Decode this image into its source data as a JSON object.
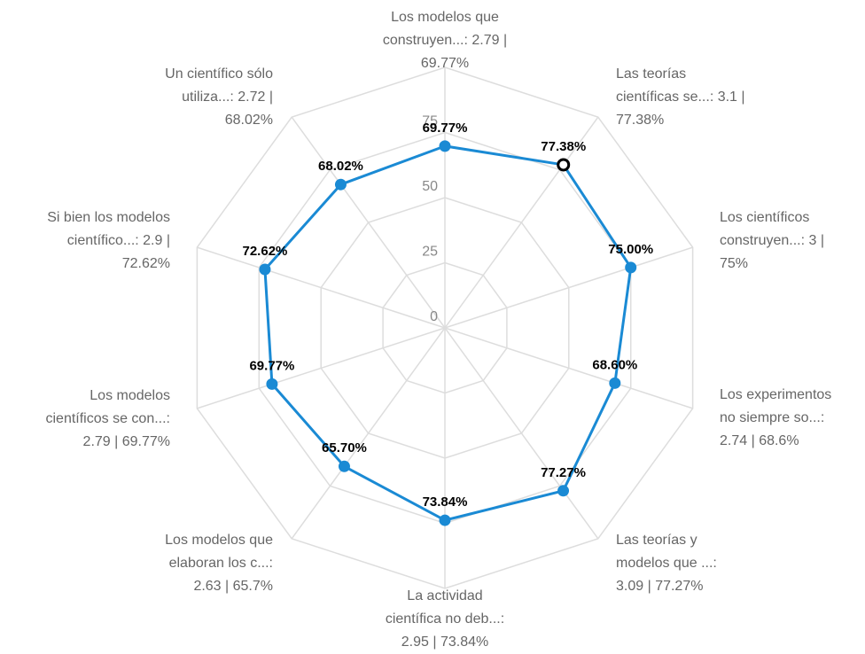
{
  "chart_data": {
    "type": "radar",
    "categories": [
      [
        "Los modelos que",
        "construyen...: 2.79 |",
        "69.77%"
      ],
      [
        "Las teorías",
        "científicas se...: 3.1 |",
        "77.38%"
      ],
      [
        "Los científicos",
        "construyen...: 3 |",
        "75%"
      ],
      [
        "Los experimentos",
        "no siempre so...:",
        "2.74 | 68.6%"
      ],
      [
        "Las teorías y",
        "modelos que ...:",
        "3.09 | 77.27%"
      ],
      [
        "La actividad",
        "científica no deb...:",
        "2.95 | 73.84%"
      ],
      [
        "Los modelos que",
        "elaboran los c...:",
        "2.63 | 65.7%"
      ],
      [
        "Los modelos",
        "científicos se con...:",
        "2.79 | 69.77%"
      ],
      [
        "Si bien los modelos",
        "científico...: 2.9 |",
        "72.62%"
      ],
      [
        "Un científico sólo",
        "utiliza...: 2.72 |",
        "68.02%"
      ]
    ],
    "values": [
      69.77,
      77.38,
      75.0,
      68.6,
      77.27,
      73.84,
      65.7,
      69.77,
      72.62,
      68.02
    ],
    "value_labels": [
      "69.77%",
      "77.38%",
      "75.00%",
      "68.60%",
      "77.27%",
      "73.84%",
      "65.70%",
      "69.77%",
      "72.62%",
      "68.02%"
    ],
    "color": "#1a8ad4",
    "ylim": [
      0,
      100
    ],
    "yticks": [
      0,
      25,
      50,
      75
    ],
    "grid": true,
    "highlight": 1
  }
}
